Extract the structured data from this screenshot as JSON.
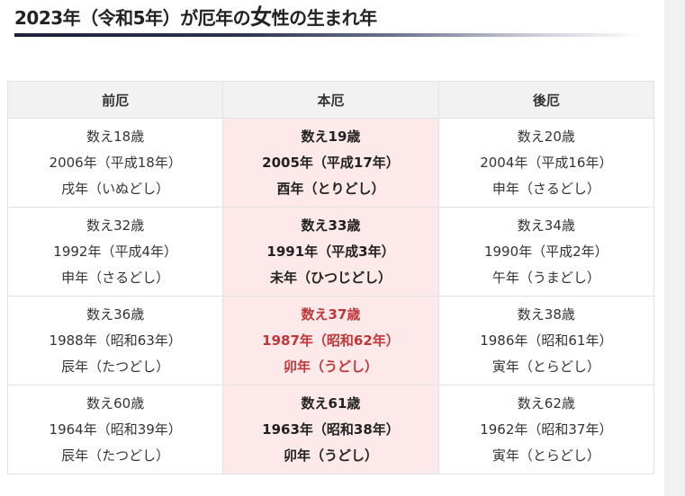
{
  "heading": {
    "before": "2023年（令和5年）が厄年の",
    "big": "女",
    "after": "性の生まれ年"
  },
  "table": {
    "headers": [
      "前厄",
      "本厄",
      "後厄"
    ],
    "rows": [
      {
        "maeyaku": [
          "数え18歳",
          "2006年（平成18年）",
          "戌年（いぬどし）"
        ],
        "honyaku": [
          "数え19歳",
          "2005年（平成17年）",
          "酉年（とりどし）"
        ],
        "atoyaku": [
          "数え20歳",
          "2004年（平成16年）",
          "申年（さるどし）"
        ]
      },
      {
        "maeyaku": [
          "数え32歳",
          "1992年（平成4年）",
          "申年（さるどし）"
        ],
        "honyaku": [
          "数え33歳",
          "1991年（平成3年）",
          "未年（ひつじどし）"
        ],
        "atoyaku": [
          "数え34歳",
          "1990年（平成2年）",
          "午年（うまどし）"
        ]
      },
      {
        "maeyaku": [
          "数え36歳",
          "1988年（昭和63年）",
          "辰年（たつどし）"
        ],
        "honyaku": [
          "数え37歳",
          "1987年（昭和62年）",
          "卯年（うどし）"
        ],
        "atoyaku": [
          "数え38歳",
          "1986年（昭和61年）",
          "寅年（とらどし）"
        ]
      },
      {
        "maeyaku": [
          "数え60歳",
          "1964年（昭和39年）",
          "辰年（たつどし）"
        ],
        "honyaku": [
          "数え61歳",
          "1963年（昭和38年）",
          "卯年（うどし）"
        ],
        "atoyaku": [
          "数え62歳",
          "1962年（昭和37年）",
          "寅年（とらどし）"
        ]
      }
    ]
  },
  "colors": {
    "honyaku_background": "#fde9e9",
    "highlight_text": "#c0373a",
    "header_background": "#f2f2f2"
  }
}
